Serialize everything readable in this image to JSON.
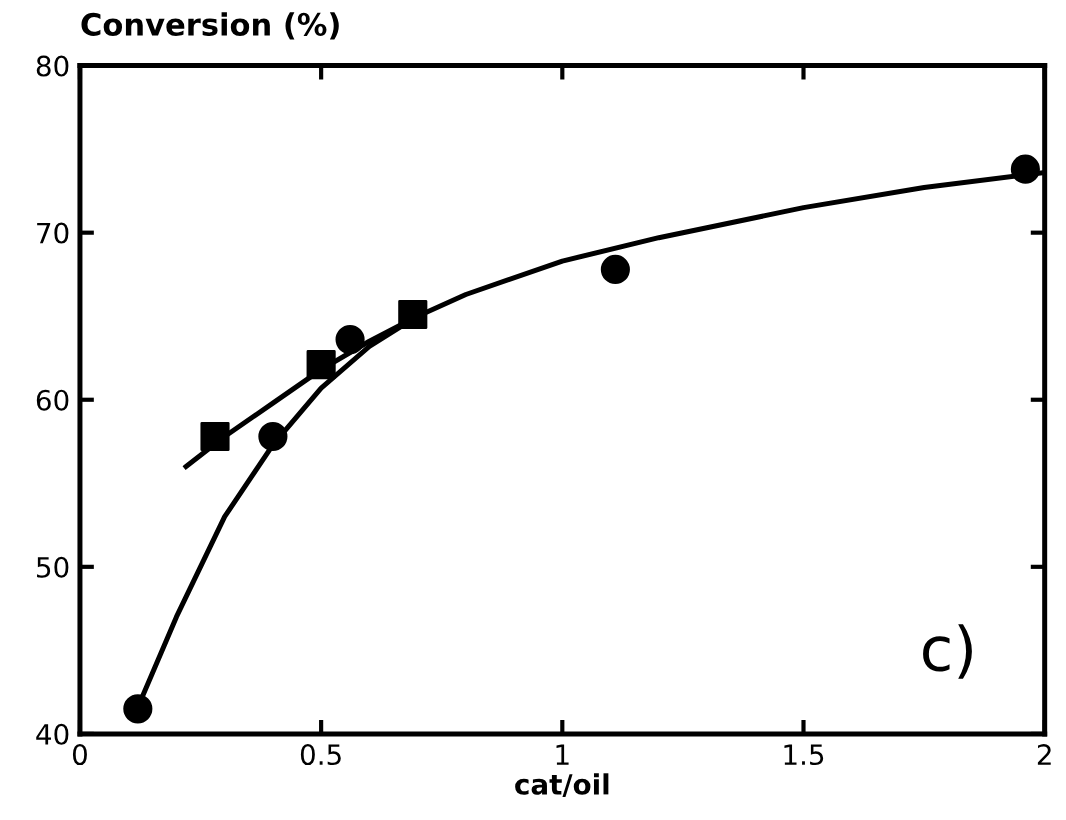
{
  "chart_data": {
    "type": "scatter",
    "ylabel": "Conversion (%)",
    "xlabel": "cat/oil",
    "xlim": [
      0,
      2
    ],
    "xticks": [
      0,
      0.5,
      1,
      1.5,
      2
    ],
    "ylim": [
      40,
      80
    ],
    "yticks": [
      40,
      50,
      60,
      70,
      80
    ],
    "grid": false,
    "legend": false,
    "annotations": [
      "c)"
    ],
    "series": [
      {
        "marker": "circle",
        "color": "#000000",
        "x": [
          0.12,
          0.4,
          0.56,
          1.11,
          1.96
        ],
        "values": [
          41.5,
          57.8,
          63.6,
          67.8,
          73.8
        ]
      },
      {
        "marker": "square",
        "color": "#000000",
        "x": [
          0.28,
          0.5,
          0.69
        ],
        "values": [
          57.8,
          62.1,
          65.1
        ]
      },
      {
        "type": "line",
        "marker": "none",
        "color": "#000000",
        "x": [
          0.12,
          0.2,
          0.3,
          0.4,
          0.5,
          0.6,
          0.7,
          0.8,
          1.0,
          1.2,
          1.5,
          1.75,
          2.0
        ],
        "values": [
          41.6,
          47,
          53,
          57.3,
          60.7,
          63.2,
          65,
          66.3,
          68.3,
          69.7,
          71.5,
          72.7,
          73.6
        ]
      },
      {
        "type": "line",
        "marker": "none",
        "color": "#000000",
        "x": [
          0.22,
          0.3,
          0.4,
          0.5,
          0.6,
          0.7
        ],
        "values": [
          56,
          57.8,
          59.8,
          61.8,
          63.5,
          65.0
        ]
      }
    ]
  }
}
